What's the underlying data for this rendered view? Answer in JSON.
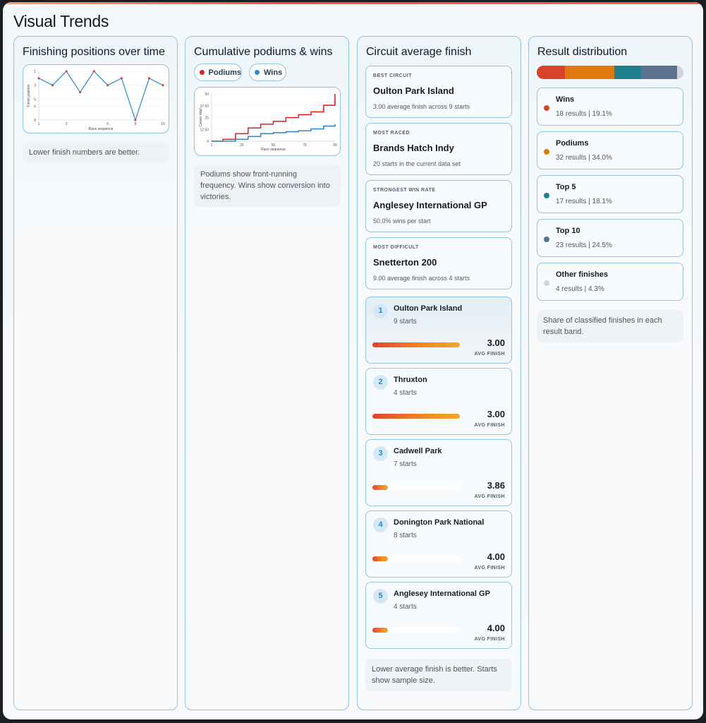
{
  "page": {
    "title": "Visual Trends"
  },
  "finishing": {
    "title": "Finishing positions over time",
    "note": "Lower finish numbers are better.",
    "chart_data": {
      "type": "line",
      "xlabel": "Race sequence",
      "ylabel": "Finish position",
      "x": [
        1,
        2,
        3,
        4,
        5,
        6,
        7,
        8,
        9,
        10
      ],
      "x_ticks": [
        "1",
        "3",
        "6",
        "8",
        "10"
      ],
      "y_ticks": [
        "1",
        "3",
        "5",
        "6",
        "8"
      ],
      "ylim": [
        1,
        8
      ],
      "y_inverted": true,
      "series": [
        {
          "values": [
            2,
            3,
            1,
            4,
            1,
            3,
            2,
            8,
            2,
            3
          ]
        }
      ]
    }
  },
  "cumulative": {
    "title": "Cumulative podiums & wins",
    "legend": [
      {
        "label": "Podiums",
        "color": "#e02424"
      },
      {
        "label": "Wins",
        "color": "#2b8ad0"
      }
    ],
    "note": "Podiums show front-running frequency. Wins show conversion into victories.",
    "chart_data": {
      "type": "line",
      "xlabel": "Race sequence",
      "ylabel": "Career total",
      "x_ticks": [
        "1",
        "25",
        "50",
        "75",
        "99"
      ],
      "y_ticks": [
        "0",
        "12.50",
        "25",
        "37.50",
        "50"
      ],
      "xlim": [
        1,
        99
      ],
      "ylim": [
        0,
        50
      ],
      "series": [
        {
          "name": "Podiums",
          "color": "#e02424",
          "x": [
            1,
            10,
            20,
            30,
            40,
            50,
            60,
            70,
            80,
            90,
            99
          ],
          "values": [
            0,
            2,
            8,
            14,
            18,
            21,
            25,
            28,
            31,
            38,
            50
          ]
        },
        {
          "name": "Wins",
          "color": "#2b8ad0",
          "x": [
            1,
            10,
            20,
            30,
            40,
            50,
            60,
            70,
            80,
            90,
            99
          ],
          "values": [
            0,
            0,
            2,
            5,
            8,
            9,
            10,
            11,
            13,
            16,
            18
          ]
        }
      ]
    }
  },
  "circuit": {
    "title": "Circuit average finish",
    "stats": [
      {
        "label": "BEST CIRCUIT",
        "name": "Oulton Park Island",
        "sub": "3.00 average finish across 9 starts"
      },
      {
        "label": "MOST RACED",
        "name": "Brands Hatch Indy",
        "sub": "20 starts in the current data set"
      },
      {
        "label": "STRONGEST WIN RATE",
        "name": "Anglesey International GP",
        "sub": "50.0% wins per start"
      },
      {
        "label": "MOST DIFFICULT",
        "name": "Snetterton 200",
        "sub": "9.00 average finish across 4 starts"
      }
    ],
    "ranks": [
      {
        "num": "1",
        "name": "Oulton Park Island",
        "starts": "9 starts",
        "value": "3.00",
        "cap": "AVG FINISH",
        "level": 1.0
      },
      {
        "num": "2",
        "name": "Thruxton",
        "starts": "4 starts",
        "value": "3.00",
        "cap": "AVG FINISH",
        "level": 1.0
      },
      {
        "num": "3",
        "name": "Cadwell Park",
        "starts": "7 starts",
        "value": "3.86",
        "cap": "AVG FINISH",
        "level": 0.18
      },
      {
        "num": "4",
        "name": "Donington Park National",
        "starts": "8 starts",
        "value": "4.00",
        "cap": "AVG FINISH",
        "level": 0.18
      },
      {
        "num": "5",
        "name": "Anglesey International GP",
        "starts": "4 starts",
        "value": "4.00",
        "cap": "AVG FINISH",
        "level": 0.18
      }
    ],
    "note": "Lower average finish is better. Starts show sample size."
  },
  "distribution": {
    "title": "Result distribution",
    "bands": [
      {
        "name": "Wins",
        "sub": "18 results | 19.1%",
        "color": "#d9432b",
        "share": 19.1
      },
      {
        "name": "Podiums",
        "sub": "32 results | 34.0%",
        "color": "#e07a10",
        "share": 34.0
      },
      {
        "name": "Top 5",
        "sub": "17 results | 18.1%",
        "color": "#1f7f8c",
        "share": 18.1
      },
      {
        "name": "Top 10",
        "sub": "23 results | 24.5%",
        "color": "#5c7390",
        "share": 24.5
      },
      {
        "name": "Other finishes",
        "sub": "4 results | 4.3%",
        "color": "#cfd5dd",
        "share": 4.3
      }
    ],
    "note": "Share of classified finishes in each result band."
  }
}
